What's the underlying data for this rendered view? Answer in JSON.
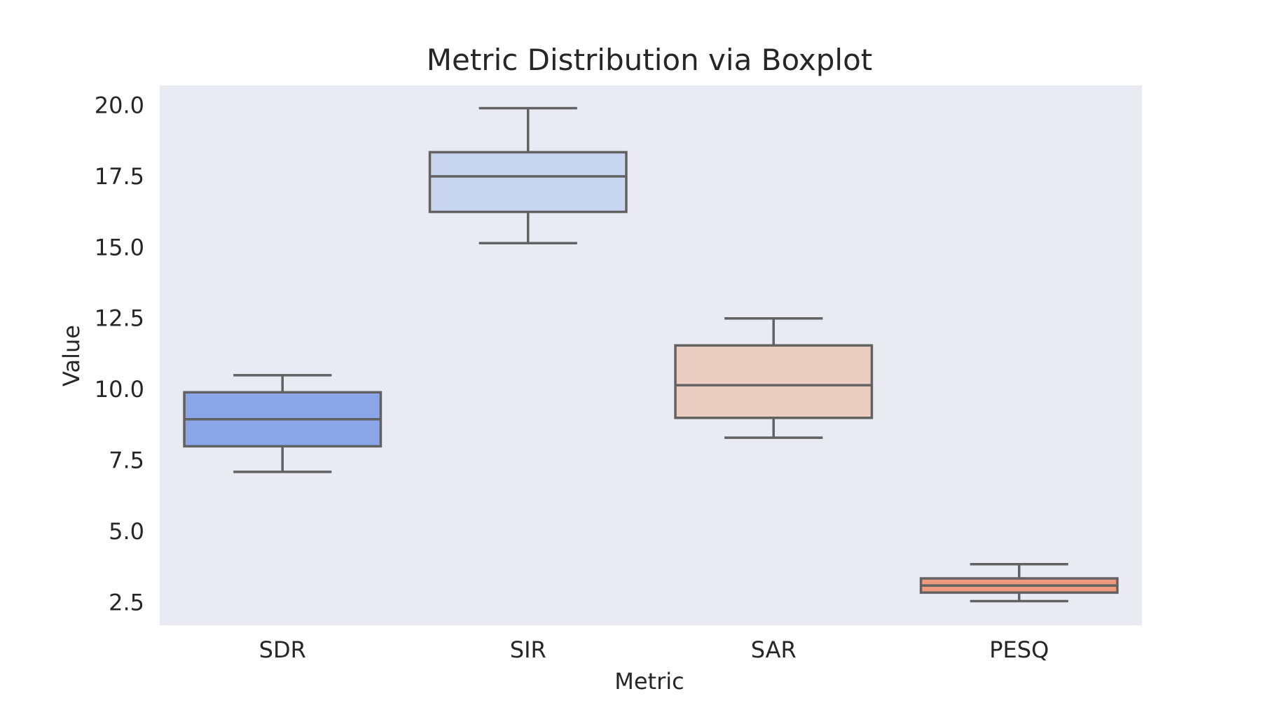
{
  "chart_data": {
    "type": "box",
    "title": "Metric Distribution via Boxplot",
    "xlabel": "Metric",
    "ylabel": "Value",
    "categories": [
      "SDR",
      "SIR",
      "SAR",
      "PESQ"
    ],
    "boxes": [
      {
        "category": "SDR",
        "whisker_low": 7.1,
        "q1": 8.0,
        "median": 8.95,
        "q3": 9.9,
        "whisker_high": 10.5,
        "color": "#8aa6e9"
      },
      {
        "category": "SIR",
        "whisker_low": 15.15,
        "q1": 16.25,
        "median": 17.5,
        "q3": 18.35,
        "whisker_high": 19.9,
        "color": "#c8d6f0"
      },
      {
        "category": "SAR",
        "whisker_low": 8.3,
        "q1": 9.0,
        "median": 10.15,
        "q3": 11.55,
        "whisker_high": 12.5,
        "color": "#ebcdc1"
      },
      {
        "category": "PESQ",
        "whisker_low": 2.55,
        "q1": 2.85,
        "median": 3.1,
        "q3": 3.35,
        "whisker_high": 3.85,
        "color": "#ee9a80"
      }
    ],
    "yticks": [
      "2.5",
      "5.0",
      "7.5",
      "10.0",
      "12.5",
      "15.0",
      "17.5",
      "20.0"
    ],
    "ylim": [
      1.7,
      20.7
    ],
    "grid": false,
    "plot_background": "#eaeaf2",
    "box_edge_color": "#626262"
  }
}
